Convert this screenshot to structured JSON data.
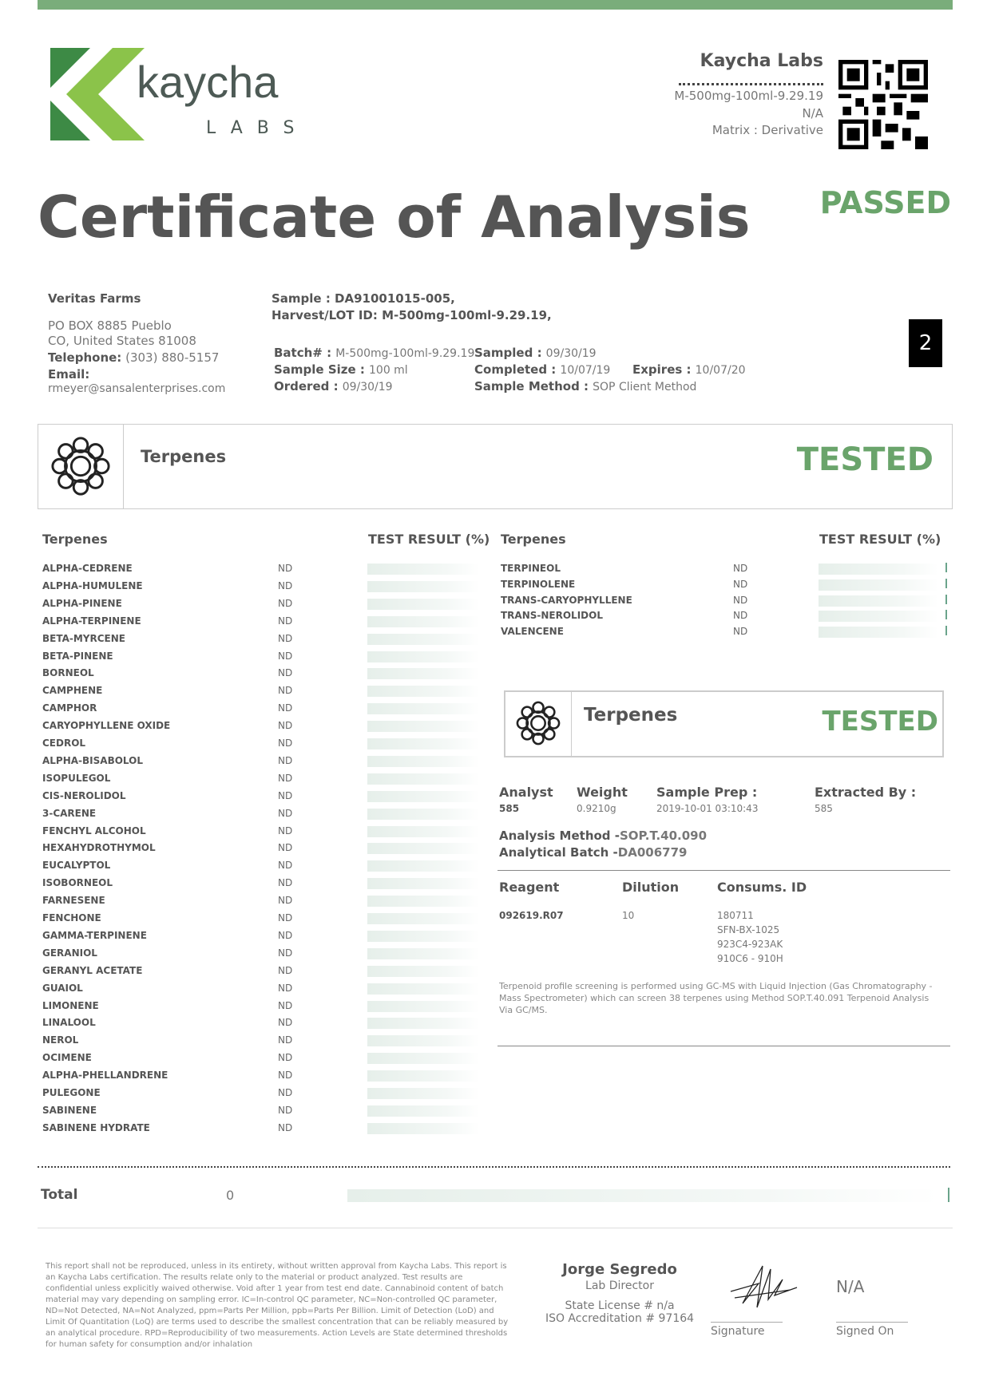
{
  "header": {
    "brand_name": "kaycha",
    "brand_sub": "LABS",
    "lab_name": "Kaycha Labs",
    "lot": "M-500mg-100ml-9.29.19",
    "na": "N/A",
    "matrix": "Matrix : Derivative",
    "title": "Certificate of Analysis",
    "status": "PASSED",
    "page_number": "2"
  },
  "client": {
    "name": "Veritas Farms",
    "address1": "PO BOX 8885 Pueblo",
    "address2": "CO, United States 81008",
    "telephone_label": "Telephone:",
    "telephone": "(303) 880-5157",
    "email_label": "Email:",
    "email": "rmeyer@sansalenterprises.com"
  },
  "sample": {
    "sample": "Sample : DA91001015-005,",
    "harvest": "Harvest/LOT ID: M-500mg-100ml-9.29.19,",
    "batch_label": "Batch# :",
    "batch": "M-500mg-100ml-9.29.19",
    "size_label": "Sample Size :",
    "size": "100 ml",
    "ordered_label": "Ordered :",
    "ordered": "09/30/19",
    "sampled_label": "Sampled :",
    "sampled": "09/30/19",
    "completed_label": "Completed :",
    "completed": "10/07/19",
    "method_label": "Sample Method :",
    "method": "SOP Client Method",
    "expires_label": "Expires :",
    "expires": "10/07/20"
  },
  "banner": {
    "title": "Terpenes",
    "status": "TESTED"
  },
  "table": {
    "col_name": "Terpenes",
    "col_result": "TEST RESULT (%)",
    "left": [
      {
        "name": "ALPHA-CEDRENE",
        "value": "ND"
      },
      {
        "name": "ALPHA-HUMULENE",
        "value": "ND"
      },
      {
        "name": "ALPHA-PINENE",
        "value": "ND"
      },
      {
        "name": "ALPHA-TERPINENE",
        "value": "ND"
      },
      {
        "name": "BETA-MYRCENE",
        "value": "ND"
      },
      {
        "name": "BETA-PINENE",
        "value": "ND"
      },
      {
        "name": "BORNEOL",
        "value": "ND"
      },
      {
        "name": "CAMPHENE",
        "value": "ND"
      },
      {
        "name": "CAMPHOR",
        "value": "ND"
      },
      {
        "name": "CARYOPHYLLENE OXIDE",
        "value": "ND"
      },
      {
        "name": "CEDROL",
        "value": "ND"
      },
      {
        "name": "ALPHA-BISABOLOL",
        "value": "ND"
      },
      {
        "name": "ISOPULEGOL",
        "value": "ND"
      },
      {
        "name": "CIS-NEROLIDOL",
        "value": "ND"
      },
      {
        "name": "3-CARENE",
        "value": "ND"
      },
      {
        "name": "FENCHYL ALCOHOL",
        "value": "ND"
      },
      {
        "name": "HEXAHYDROTHYMOL",
        "value": "ND"
      },
      {
        "name": "EUCALYPTOL",
        "value": "ND"
      },
      {
        "name": "ISOBORNEOL",
        "value": "ND"
      },
      {
        "name": "FARNESENE",
        "value": "ND"
      },
      {
        "name": "FENCHONE",
        "value": "ND"
      },
      {
        "name": "GAMMA-TERPINENE",
        "value": "ND"
      },
      {
        "name": "GERANIOL",
        "value": "ND"
      },
      {
        "name": "GERANYL ACETATE",
        "value": "ND"
      },
      {
        "name": "GUAIOL",
        "value": "ND"
      },
      {
        "name": "LIMONENE",
        "value": "ND"
      },
      {
        "name": "LINALOOL",
        "value": "ND"
      },
      {
        "name": "NEROL",
        "value": "ND"
      },
      {
        "name": "OCIMENE",
        "value": "ND"
      },
      {
        "name": "ALPHA-PHELLANDRENE",
        "value": "ND"
      },
      {
        "name": "PULEGONE",
        "value": "ND"
      },
      {
        "name": "SABINENE",
        "value": "ND"
      },
      {
        "name": "SABINENE HYDRATE",
        "value": "ND"
      }
    ],
    "right": [
      {
        "name": "TERPINEOL",
        "value": "ND"
      },
      {
        "name": "TERPINOLENE",
        "value": "ND"
      },
      {
        "name": "TRANS-CARYOPHYLLENE",
        "value": "ND"
      },
      {
        "name": "TRANS-NEROLIDOL",
        "value": "ND"
      },
      {
        "name": "VALENCENE",
        "value": "ND"
      }
    ]
  },
  "analysis": {
    "title": "Terpenes",
    "status": "TESTED",
    "analyst_label": "Analyst",
    "analyst": "585",
    "weight_label": "Weight",
    "weight": "0.9210g",
    "prep_label": "Sample Prep :",
    "prep": "2019-10-01 03:10:43",
    "extracted_label": "Extracted By :",
    "extracted": "585",
    "method_label": "Analysis Method -",
    "method": "SOP.T.40.090",
    "batch_label": "Analytical Batch -",
    "batch": "DA006779",
    "reagent_label": "Reagent",
    "reagent": "092619.R07",
    "dilution_label": "Dilution",
    "dilution": "10",
    "consums_label": "Consums. ID",
    "consums": [
      "180711",
      "SFN-BX-1025",
      "923C4-923AK",
      "910C6 - 910H"
    ],
    "note": [
      "Terpenoid profile screening is performed using GC-MS with Liquid Injection (Gas Chromatography -",
      "Mass Spectrometer) which can screen 38 terpenes using Method SOP.T.40.091 Terpenoid Analysis",
      "Via GC/MS."
    ]
  },
  "total": {
    "label": "Total",
    "value": "0"
  },
  "footer": {
    "disclaimer": [
      "This report shall not be reproduced, unless in its entirety, without written approval from Kaycha Labs. This report is",
      "an Kaycha Labs certification. The results relate only to the material or product analyzed. Test results are",
      "confidential unless explicitly waived otherwise. Void after 1 year from test end date. Cannabinoid content of batch",
      "material may vary depending on sampling error. IC=In-control QC parameter, NC=Non-controlled QC parameter,",
      "ND=Not Detected, NA=Not Analyzed, ppm=Parts Per Million, ppb=Parts Per Billion. Limit of Detection (LoD) and",
      "Limit Of Quantitation (LoQ) are terms used to describe the smallest concentration that can be reliably measured by",
      "an analytical procedure. RPD=Reproducibility of two measurements. Action Levels are State determined thresholds",
      "for human safety for consumption and/or inhalation"
    ],
    "director_name": "Jorge Segredo",
    "director_title": "Lab Director",
    "license": "State License # n/a",
    "iso": "ISO Accreditation # 97164",
    "signature_label": "Signature",
    "signed_on_value": "N/A",
    "signed_on_label": "Signed On"
  },
  "colors": {
    "accent": "#6aa46b",
    "logo_dark": "#3d8a45",
    "logo_light": "#8bc34a"
  }
}
